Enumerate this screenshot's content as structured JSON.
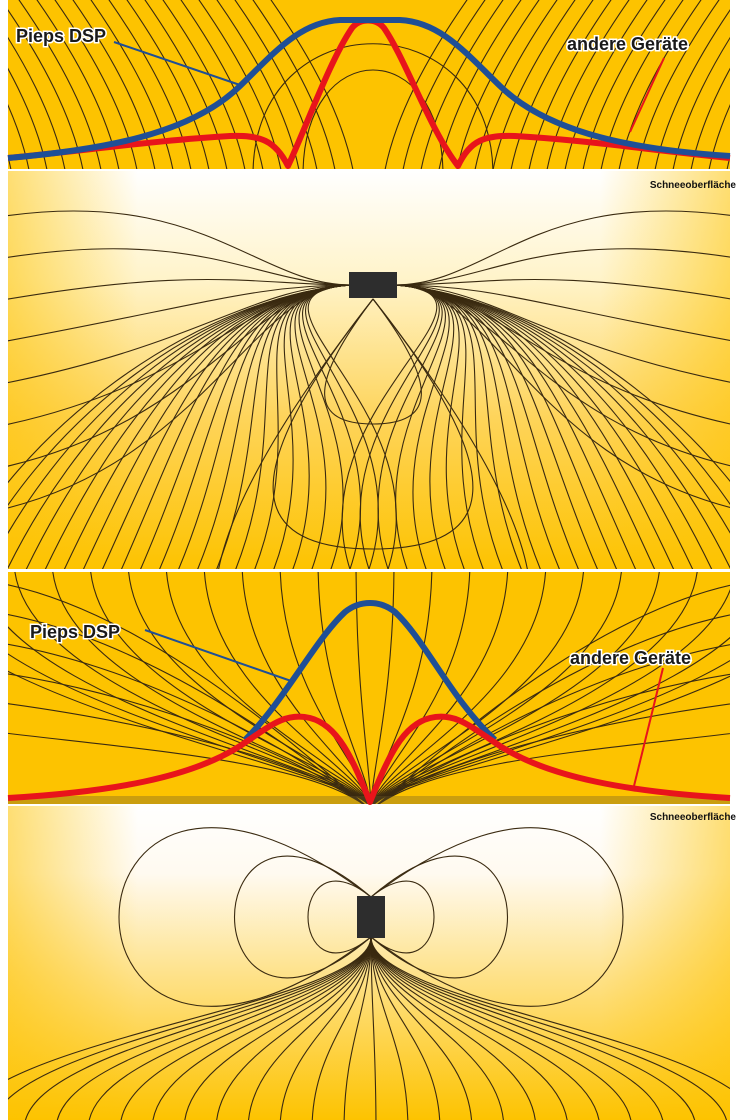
{
  "colors": {
    "background_amber": "#FDC300",
    "snow_white": "#FFFFFF",
    "field_line": "#3a2a10",
    "pieps_curve": "#1F4F96",
    "other_curve": "#E8141B",
    "transmitter": "#2d2d2d"
  },
  "panels": [
    {
      "orientation": "horizontal",
      "labels": {
        "pieps": "Pieps DSP",
        "other": "andere Geräte",
        "surface": "Schneeoberfläche"
      }
    },
    {
      "orientation": "vertical",
      "labels": {
        "pieps": "Pieps DSP",
        "other": "andere Geräte",
        "surface": "Schneeoberfläche"
      }
    }
  ]
}
